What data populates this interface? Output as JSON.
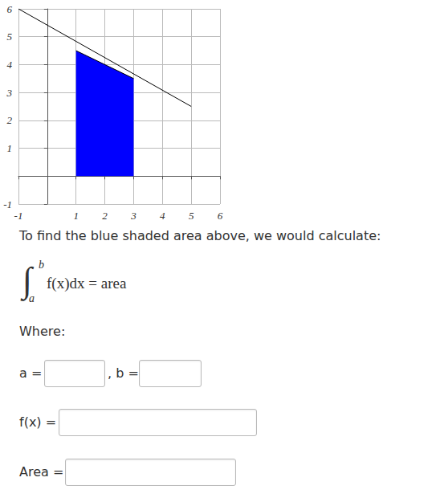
{
  "chart_data": {
    "type": "line",
    "xlim": [
      -1,
      6
    ],
    "ylim": [
      -1,
      6
    ],
    "xticks": [
      -1,
      1,
      2,
      3,
      4,
      5,
      6
    ],
    "yticks": [
      -1,
      1,
      2,
      3,
      4,
      5,
      6
    ],
    "grid": true,
    "series": [
      {
        "type": "line",
        "x": [
          -1,
          5
        ],
        "values": [
          6,
          2.5
        ],
        "color": "#000000"
      },
      {
        "type": "area",
        "x": [
          1,
          3
        ],
        "values": [
          4.5,
          3.5
        ],
        "color": "#0000ff"
      }
    ]
  },
  "page": {
    "prompt": "To find the blue shaded area above, we would calculate:",
    "integral": {
      "sign": "∫",
      "upper": "b",
      "lower": "a",
      "expression": "f(x)dx = area"
    },
    "where": "Where:",
    "fields": {
      "a": "a =",
      "b": ", b =",
      "f": "f(x) =",
      "area": "Area ="
    }
  }
}
